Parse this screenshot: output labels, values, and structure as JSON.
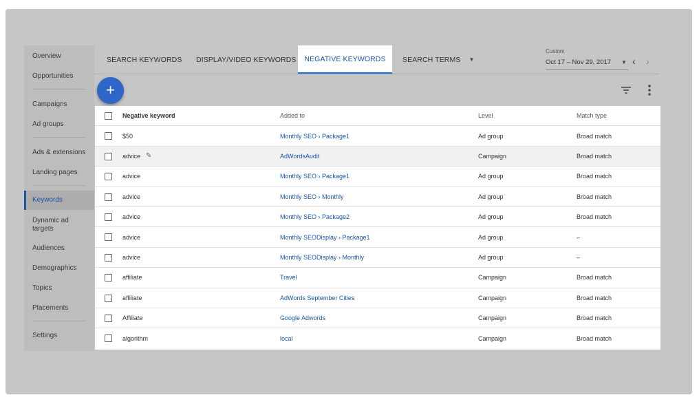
{
  "sidebar": {
    "items": [
      {
        "label": "Overview"
      },
      {
        "label": "Opportunities"
      },
      {
        "label": "Campaigns"
      },
      {
        "label": "Ad groups"
      },
      {
        "label": "Ads & extensions"
      },
      {
        "label": "Landing pages"
      },
      {
        "label": "Keywords",
        "active": true
      },
      {
        "label": "Dynamic ad targets"
      },
      {
        "label": "Audiences"
      },
      {
        "label": "Demographics"
      },
      {
        "label": "Topics"
      },
      {
        "label": "Placements"
      },
      {
        "label": "Settings"
      }
    ]
  },
  "tabs": [
    {
      "label": "SEARCH KEYWORDS"
    },
    {
      "label": "DISPLAY/VIDEO KEYWORDS"
    },
    {
      "label": "NEGATIVE KEYWORDS",
      "active": true
    },
    {
      "label": "SEARCH TERMS"
    }
  ],
  "date_range": {
    "label": "Custom",
    "value": "Oct 17 – Nov 29, 2017"
  },
  "toolbar": {
    "add_label": "+"
  },
  "table": {
    "headers": {
      "keyword": "Negative keyword",
      "added_to": "Added to",
      "level": "Level",
      "match_type": "Match type"
    },
    "rows": [
      {
        "keyword": "$50",
        "added_to": "Monthly SEO › Package1",
        "level": "Ad group",
        "match_type": "Broad match"
      },
      {
        "keyword": "advice",
        "added_to": "AdWordsAudit",
        "level": "Campaign",
        "match_type": "Broad match",
        "editing": true
      },
      {
        "keyword": "advice",
        "added_to": "Monthly SEO › Package1",
        "level": "Ad group",
        "match_type": "Broad match"
      },
      {
        "keyword": "advice",
        "added_to": "Monthly SEO › Monthly",
        "level": "Ad group",
        "match_type": "Broad match"
      },
      {
        "keyword": "advice",
        "added_to": "Monthly SEO › Package2",
        "level": "Ad group",
        "match_type": "Broad match"
      },
      {
        "keyword": "advice",
        "added_to": "Monthly SEODisplay › Package1",
        "level": "Ad group",
        "match_type": "–"
      },
      {
        "keyword": "advice",
        "added_to": "Monthly SEODisplay › Monthly",
        "level": "Ad group",
        "match_type": "–"
      },
      {
        "keyword": "affiliate",
        "added_to": "Travel",
        "level": "Campaign",
        "match_type": "Broad match"
      },
      {
        "keyword": "affiliate",
        "added_to": "AdWords September Cities",
        "level": "Campaign",
        "match_type": "Broad match"
      },
      {
        "keyword": "Affiliate",
        "added_to": "Google Adwords",
        "level": "Campaign",
        "match_type": "Broad match"
      },
      {
        "keyword": "algorithm",
        "added_to": "local",
        "level": "Campaign",
        "match_type": "Broad match"
      }
    ]
  }
}
